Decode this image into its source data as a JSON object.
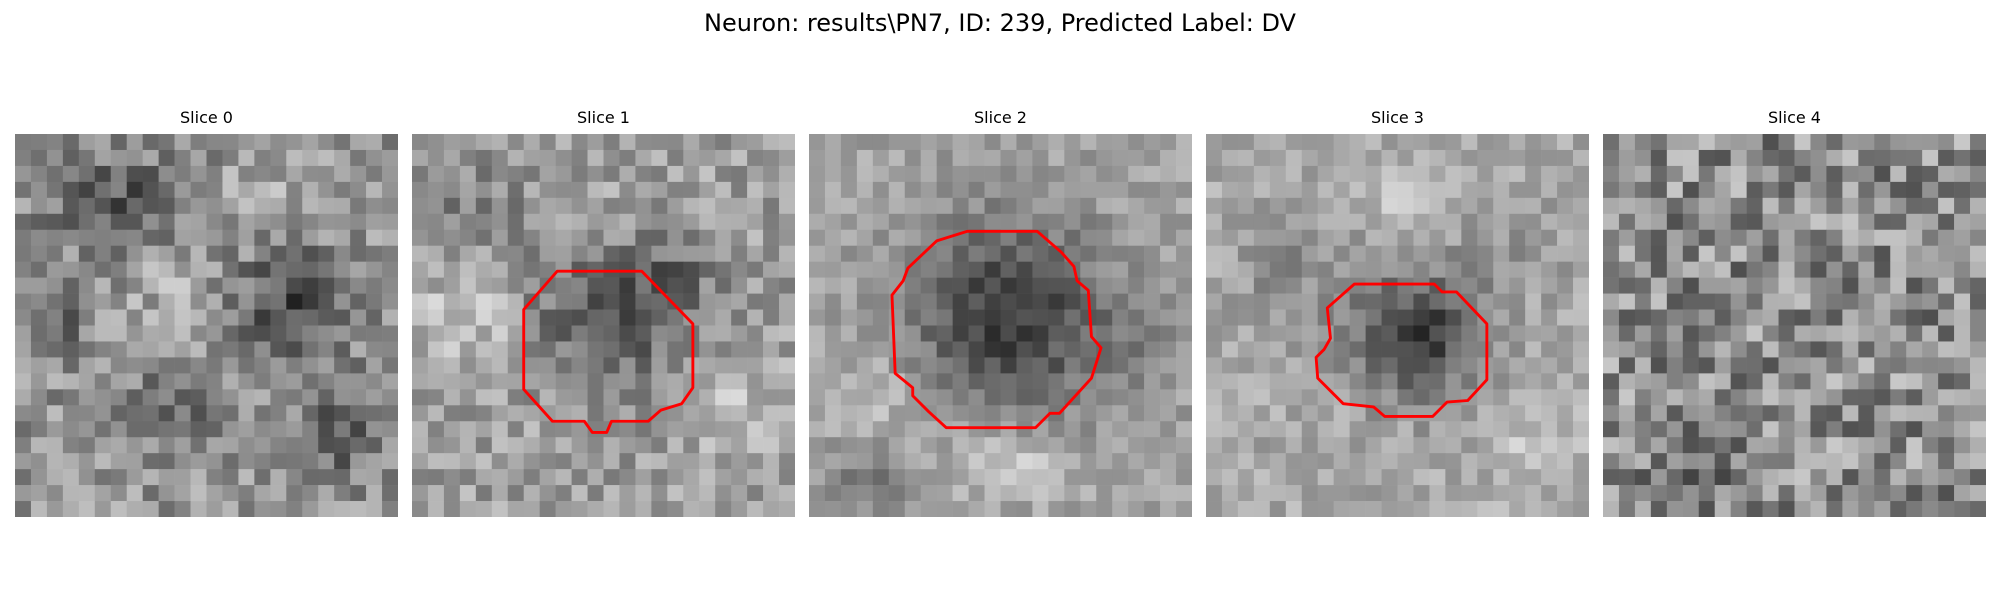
{
  "figure": {
    "title": "Neuron: results\\PN7, ID: 239, Predicted Label: DV"
  },
  "panels": [
    {
      "title": "Slice 0",
      "has_outline": false,
      "outline_color": "#ff0000"
    },
    {
      "title": "Slice 1",
      "has_outline": true,
      "outline_color": "#ff0000"
    },
    {
      "title": "Slice 2",
      "has_outline": true,
      "outline_color": "#ff0000"
    },
    {
      "title": "Slice 3",
      "has_outline": true,
      "outline_color": "#ff0000"
    },
    {
      "title": "Slice 4",
      "has_outline": false,
      "outline_color": "#ff0000"
    }
  ],
  "colors": {
    "outline": "#ff0000",
    "colormap": "gray"
  }
}
